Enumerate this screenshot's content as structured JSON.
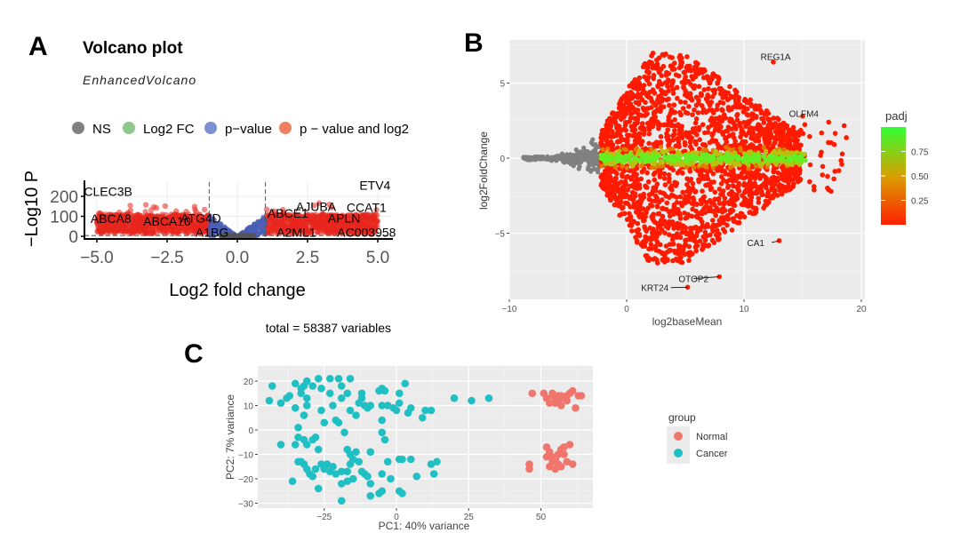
{
  "chart_data": [
    {
      "panel": "A",
      "type": "scatter",
      "title": "Volcano plot",
      "subtitle": "EnhancedVolcano",
      "xlabel": "Log2 fold change",
      "ylabel": "−Log10 P",
      "xlim": [
        -5.5,
        5.5
      ],
      "ylim": [
        0,
        270
      ],
      "xticks": [
        "−5.0",
        "−2.5",
        "0.0",
        "2.5",
        "5.0"
      ],
      "xtick_values": [
        -5,
        -2.5,
        0,
        2.5,
        5
      ],
      "yticks": [
        "0",
        "100",
        "200"
      ],
      "ytick_values": [
        0,
        100,
        200
      ],
      "fc_cutoff": [
        -1,
        1
      ],
      "legend": [
        {
          "label": "NS",
          "color": "#808080"
        },
        {
          "label": "Log2 FC",
          "color": "#8fc98a"
        },
        {
          "label": "p−value",
          "color": "#7c8fd0"
        },
        {
          "label": "p − value and log2",
          "color": "#ee8060"
        }
      ],
      "caption": "total = 58387 variables",
      "labeled_genes": [
        {
          "name": "CLEC3B",
          "x": -4.6,
          "y": 225
        },
        {
          "name": "ABCA8",
          "x": -4.5,
          "y": 90
        },
        {
          "name": "ABCA10",
          "x": -2.5,
          "y": 75
        },
        {
          "name": "ATG4D",
          "x": -1.3,
          "y": 92
        },
        {
          "name": "A1BG",
          "x": -0.9,
          "y": 20
        },
        {
          "name": "ABCE1",
          "x": 1.8,
          "y": 115
        },
        {
          "name": "A2ML1",
          "x": 2.1,
          "y": 20
        },
        {
          "name": "AJUBA",
          "x": 2.8,
          "y": 150
        },
        {
          "name": "ETV4",
          "x": 4.9,
          "y": 255
        },
        {
          "name": "CCAT1",
          "x": 4.6,
          "y": 145
        },
        {
          "name": "APLN",
          "x": 3.8,
          "y": 92
        },
        {
          "name": "AC003958",
          "x": 4.6,
          "y": 20
        }
      ]
    },
    {
      "panel": "B",
      "type": "scatter",
      "xlabel": "log2baseMean",
      "ylabel": "log2FoldChange",
      "xlim": [
        -10,
        20.2
      ],
      "ylim": [
        -9.5,
        7.9
      ],
      "xticks": [
        "−10",
        "0",
        "10",
        "20"
      ],
      "xtick_values": [
        -10,
        0,
        10,
        20
      ],
      "yticks": [
        "5",
        "0",
        "−5"
      ],
      "ytick_values": [
        5,
        0,
        -5
      ],
      "color_legend": {
        "title": "padj",
        "ticks": [
          "0.75",
          "0.50",
          "0.25"
        ],
        "tick_values": [
          0.75,
          0.5,
          0.25
        ],
        "low_color": "#ff2000",
        "high_color": "#33ff33"
      },
      "labeled_genes": [
        {
          "name": "REG1A",
          "x": 12.5,
          "y": 6.4
        },
        {
          "name": "OLFM4",
          "x": 15.0,
          "y": 2.8
        },
        {
          "name": "CA1",
          "x": 13.0,
          "y": -5.5
        },
        {
          "name": "OTOP2",
          "x": 7.9,
          "y": -7.9
        },
        {
          "name": "KRT24",
          "x": 5.2,
          "y": -8.6
        }
      ]
    },
    {
      "panel": "C",
      "type": "scatter",
      "xlabel": "PC1: 40% variance",
      "ylabel": "PC2: 7% variance",
      "xlim": [
        -48,
        68
      ],
      "ylim": [
        -32,
        26
      ],
      "xticks": [
        "−25",
        "0",
        "25",
        "50"
      ],
      "xtick_values": [
        -25,
        0,
        25,
        50
      ],
      "yticks": [
        "20",
        "10",
        "0",
        "−10",
        "−20",
        "−30"
      ],
      "ytick_values": [
        20,
        10,
        0,
        -10,
        -20,
        -30
      ],
      "legend_title": "group",
      "series": [
        {
          "name": "Normal",
          "color": "#f0766d",
          "points": [
            [
              47,
              15
            ],
            [
              51,
              15
            ],
            [
              52,
              13
            ],
            [
              53,
              11
            ],
            [
              54,
              14
            ],
            [
              55,
              13
            ],
            [
              55,
              11
            ],
            [
              56,
              12
            ],
            [
              57,
              14
            ],
            [
              57,
              10
            ],
            [
              58,
              13
            ],
            [
              59,
              12
            ],
            [
              60,
              15
            ],
            [
              61,
              16
            ],
            [
              59,
              14
            ],
            [
              56,
              14
            ],
            [
              63,
              14
            ],
            [
              64,
              14
            ],
            [
              62,
              9
            ],
            [
              54,
              15
            ],
            [
              52,
              -7
            ],
            [
              53,
              -9
            ],
            [
              52,
              -11
            ],
            [
              54,
              -13
            ],
            [
              55,
              -12
            ],
            [
              56,
              -14
            ],
            [
              57,
              -15
            ],
            [
              55,
              -16
            ],
            [
              58,
              -7
            ],
            [
              57,
              -8
            ],
            [
              59,
              -13
            ],
            [
              61,
              -14
            ],
            [
              58,
              -10
            ],
            [
              46,
              -16
            ],
            [
              46,
              -14
            ],
            [
              53,
              -15
            ],
            [
              56,
              -10
            ],
            [
              54,
              -11
            ],
            [
              60,
              -6
            ]
          ]
        },
        {
          "name": "Cancer",
          "color": "#1fbfc3",
          "points": [
            [
              -43,
              18
            ],
            [
              -44,
              12
            ],
            [
              -40,
              11
            ],
            [
              -38,
              13
            ],
            [
              -37,
              14
            ],
            [
              -35,
              19
            ],
            [
              -35,
              9
            ],
            [
              -34,
              1
            ],
            [
              -33,
              15
            ],
            [
              -33,
              17
            ],
            [
              -32,
              18
            ],
            [
              -31,
              20
            ],
            [
              -31,
              13
            ],
            [
              -31,
              10
            ],
            [
              -32,
              6
            ],
            [
              -29,
              18
            ],
            [
              -27,
              21
            ],
            [
              -26,
              17
            ],
            [
              -26,
              8
            ],
            [
              -25,
              3
            ],
            [
              -23,
              21
            ],
            [
              -23,
              15
            ],
            [
              -22,
              10
            ],
            [
              -21,
              4
            ],
            [
              -20,
              3
            ],
            [
              -20,
              21
            ],
            [
              -19,
              18
            ],
            [
              -19,
              13
            ],
            [
              -17,
              15
            ],
            [
              -16,
              21
            ],
            [
              -16,
              8
            ],
            [
              -14,
              6
            ],
            [
              -13,
              11
            ],
            [
              -12,
              13
            ],
            [
              -12,
              15
            ],
            [
              -11,
              10
            ],
            [
              -10,
              9
            ],
            [
              -9,
              10
            ],
            [
              -6,
              16
            ],
            [
              -5,
              17
            ],
            [
              -4,
              16
            ],
            [
              -5,
              10
            ],
            [
              -5,
              4
            ],
            [
              -3,
              10
            ],
            [
              -1,
              9
            ],
            [
              0,
              8
            ],
            [
              1,
              11
            ],
            [
              1,
              15
            ],
            [
              3,
              19
            ],
            [
              4,
              7
            ],
            [
              5,
              9
            ],
            [
              9,
              5
            ],
            [
              10,
              8
            ],
            [
              12,
              8
            ],
            [
              20,
              13
            ],
            [
              26,
              12
            ],
            [
              32,
              13
            ],
            [
              -40,
              -6
            ],
            [
              -35,
              -6
            ],
            [
              -34,
              -3
            ],
            [
              -32,
              -4
            ],
            [
              -31,
              -6
            ],
            [
              -28,
              -3
            ],
            [
              -29,
              -4
            ],
            [
              -27,
              -8
            ],
            [
              -34,
              -13
            ],
            [
              -32,
              -14
            ],
            [
              -31,
              -16
            ],
            [
              -30,
              -18
            ],
            [
              -29,
              -19
            ],
            [
              -28,
              -16
            ],
            [
              -26,
              -14
            ],
            [
              -25,
              -16
            ],
            [
              -24,
              -14
            ],
            [
              -23,
              -17
            ],
            [
              -22,
              -15
            ],
            [
              -21,
              -18
            ],
            [
              -19,
              -17
            ],
            [
              -18,
              -1
            ],
            [
              -17,
              -8
            ],
            [
              -16,
              -10
            ],
            [
              -15,
              -12
            ],
            [
              -14,
              -9
            ],
            [
              -16,
              -14
            ],
            [
              -17,
              -17
            ],
            [
              -15,
              -20
            ],
            [
              -13,
              -13
            ],
            [
              -12,
              -17
            ],
            [
              -11,
              -18
            ],
            [
              -10,
              -19
            ],
            [
              -9,
              -9
            ],
            [
              -9,
              -22
            ],
            [
              -9,
              -27
            ],
            [
              -6,
              -26
            ],
            [
              -5,
              -25
            ],
            [
              -5,
              -18
            ],
            [
              -4,
              -4
            ],
            [
              -5,
              -1
            ],
            [
              -3,
              -13
            ],
            [
              -2,
              -20
            ],
            [
              1,
              -12
            ],
            [
              2,
              -12
            ],
            [
              1,
              -25
            ],
            [
              2,
              -26
            ],
            [
              5,
              -12
            ],
            [
              7,
              -19
            ],
            [
              12,
              -14
            ],
            [
              14,
              -13
            ],
            [
              13,
              -18
            ],
            [
              -36,
              -21
            ],
            [
              -27,
              -24
            ],
            [
              -19,
              -22
            ],
            [
              -19,
              -29
            ],
            [
              -17,
              -21
            ],
            [
              -33,
              -13
            ]
          ]
        }
      ]
    }
  ],
  "panel_letters": [
    "A",
    "B",
    "C"
  ]
}
